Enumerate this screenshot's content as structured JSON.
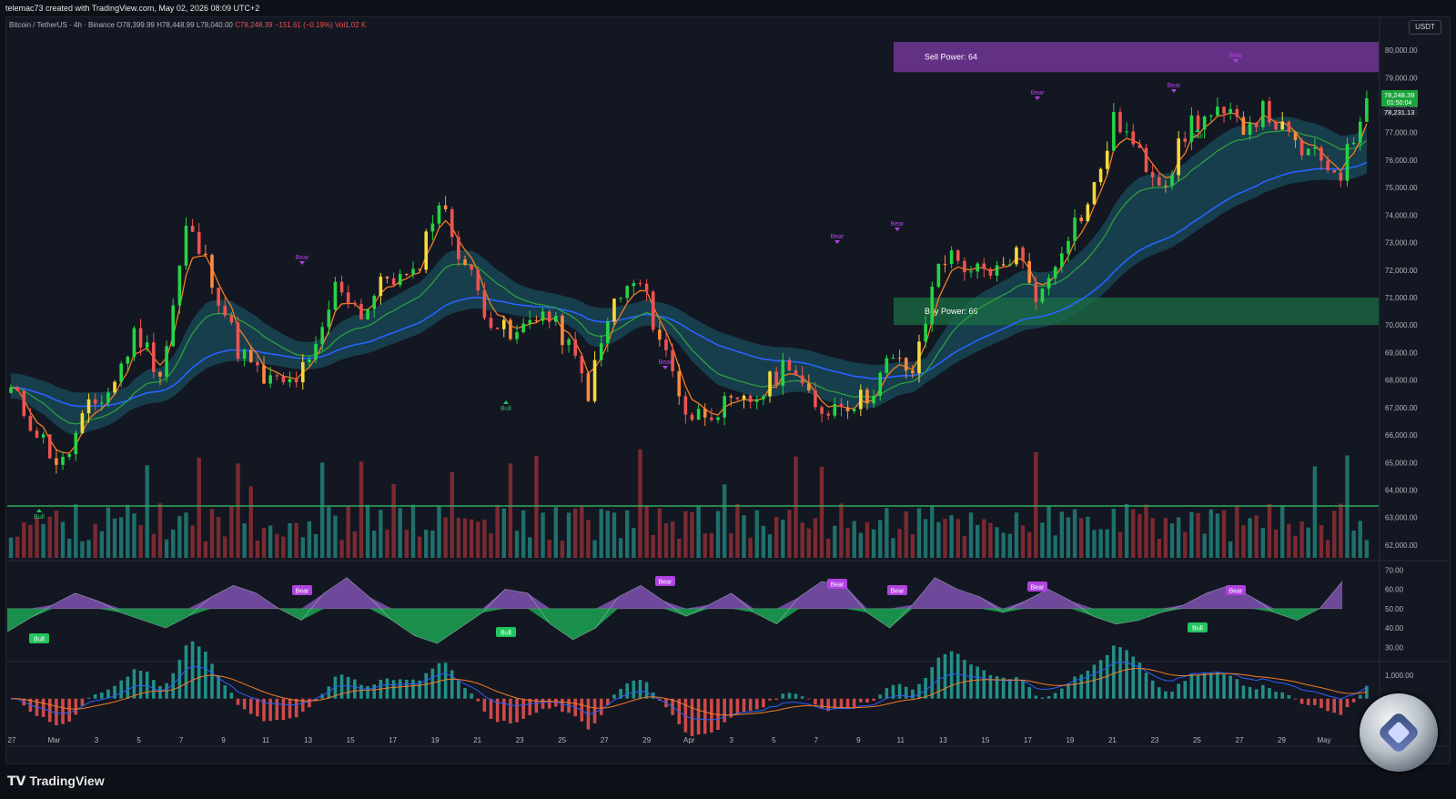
{
  "caption": "telemac73 created with TradingView.com, May 02, 2026 08:09 UTC+2",
  "header": {
    "symbol": "Bitcoin / TetherUS · 4h · Binance",
    "open": "O78,399.99",
    "high": "H78,448.99",
    "low": "L78,040.00",
    "close": "C78,248.39",
    "change": "−151.61 (−0.19%)",
    "volume": "Vol1.02 K"
  },
  "quote_currency": "USDT",
  "footer": {
    "brand": "TradingView"
  },
  "colors": {
    "up": "#26d444",
    "down": "#ef5350",
    "ema_fast": "#f57c22",
    "ema_mid": "#2f9e3f",
    "ma_slow": "#2962ff",
    "cloud": "#1c5e70",
    "sell_zone": "#7e3aa6",
    "buy_zone": "#1b6e44",
    "bear_label": "#b042e0",
    "bull_label": "#22c55e"
  },
  "chart_data": [
    {
      "type": "line",
      "panel": "price",
      "y_axis_ticks": [
        "80,000.00",
        "79,000.00",
        "78,000.00",
        "77,000.00",
        "76,000.00",
        "75,000.00",
        "74,000.00",
        "73,000.00",
        "72,000.00",
        "71,000.00",
        "70,000.00",
        "69,000.00",
        "68,000.00",
        "67,000.00",
        "66,000.00",
        "65,000.00",
        "64,000.00",
        "63,000.00",
        "62,000.00"
      ],
      "ylim": [
        61500,
        80500
      ],
      "x_axis_ticks": [
        "27",
        "Mar",
        "3",
        "5",
        "7",
        "9",
        "11",
        "13",
        "15",
        "17",
        "19",
        "21",
        "23",
        "25",
        "27",
        "29",
        "Apr",
        "3",
        "5",
        "7",
        "9",
        "11",
        "13",
        "15",
        "17",
        "19",
        "21",
        "23",
        "25",
        "27",
        "29",
        "May"
      ],
      "price_labels": {
        "last": "78,248.39",
        "countdown": "01:50:04",
        "ma": "78,231.13"
      },
      "series": [
        {
          "name": "",
          "values": [
            67600,
            66200,
            64800,
            66800,
            67700,
            69800,
            68200,
            73600,
            71800,
            69200,
            68000,
            67800,
            68600,
            71600,
            70400,
            71800,
            71600,
            74600,
            72400,
            70400,
            69400,
            70600,
            69600,
            67600,
            70800,
            71600,
            69200,
            66600,
            67000,
            67000,
            67600,
            68800,
            66800,
            67200,
            67300,
            68700,
            68300,
            72600,
            72200,
            71600,
            72700,
            70900,
            73300,
            74500,
            77600,
            76000,
            75300,
            77400,
            77600,
            77300,
            77800,
            76600,
            76000,
            75600,
            78248
          ]
        }
      ],
      "zones": [
        {
          "label": "Sell Power: 64",
          "from": 79200,
          "to": 80300
        },
        {
          "label": "Buy Power: 66",
          "from": 70000,
          "to": 71000
        }
      ],
      "signals": [
        {
          "label": "Bear"
        },
        {
          "label": "Bear"
        },
        {
          "label": "Bear"
        },
        {
          "label": "Bear"
        },
        {
          "label": "Bear"
        },
        {
          "label": "Bear"
        },
        {
          "label": "Bear"
        },
        {
          "label": "Bull"
        },
        {
          "label": "Bull"
        },
        {
          "label": "Bull"
        }
      ]
    },
    {
      "type": "area",
      "panel": "oscillator",
      "y_axis_ticks": [
        "70.00",
        "60.00",
        "50.00",
        "40.00",
        "30.00"
      ],
      "ylim": [
        25,
        72
      ],
      "values": [
        38,
        45,
        52,
        58,
        54,
        48,
        44,
        40,
        46,
        56,
        62,
        58,
        50,
        44,
        58,
        66,
        56,
        44,
        36,
        32,
        40,
        48,
        60,
        58,
        42,
        34,
        40,
        56,
        62,
        54,
        46,
        52,
        58,
        48,
        42,
        56,
        64,
        62,
        48,
        40,
        52,
        66,
        60,
        56,
        48,
        54,
        60,
        54,
        46,
        42,
        44,
        48,
        52,
        58,
        62,
        56,
        48,
        44,
        50,
        64
      ]
    },
    {
      "type": "bar",
      "panel": "macd",
      "y_axis_ticks": [
        "1,000.00",
        "0.00"
      ],
      "ylim": [
        -1500,
        1400
      ]
    }
  ]
}
